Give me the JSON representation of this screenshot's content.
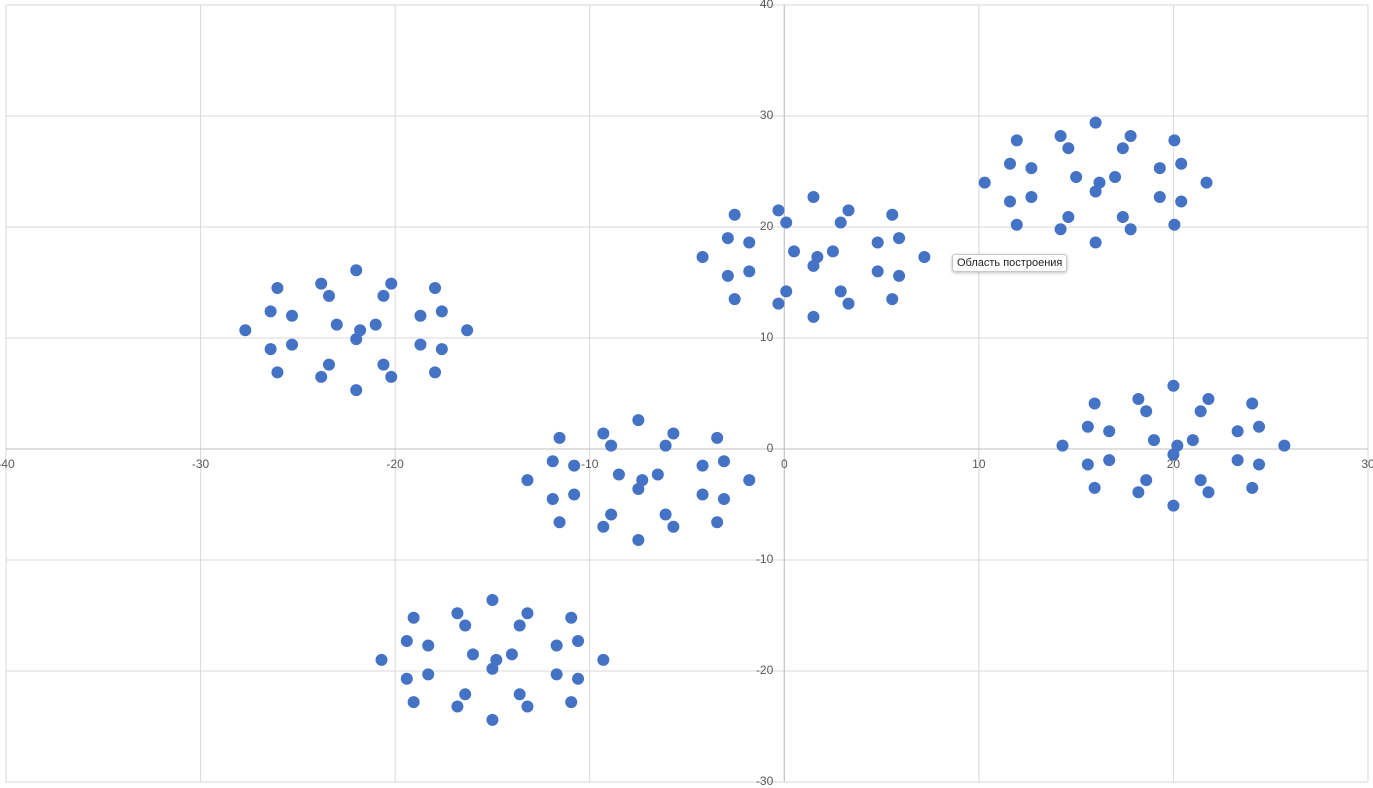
{
  "chart_data": {
    "type": "scatter",
    "annotation": "Область построения",
    "xlim": [
      -40,
      30
    ],
    "xticks": [
      -40,
      -30,
      -20,
      -10,
      0,
      10,
      20,
      30
    ],
    "ylim": [
      -30,
      40
    ],
    "yticks": [
      -30,
      -20,
      -10,
      0,
      10,
      20,
      30,
      40
    ],
    "grid": true,
    "series": [
      {
        "color": "#4472c4",
        "x": [
          -16.3,
          -17.95,
          -22,
          -26.05,
          -27.7,
          -26.05,
          -22,
          -17.95,
          -17.6,
          -20.2,
          -23.8,
          -26.4,
          -26.4,
          -23.8,
          -20.2,
          -17.6,
          -18.7,
          -20.6,
          -23.4,
          -25.3,
          -25.3,
          -23.4,
          -20.6,
          -18.7,
          -21,
          -23,
          -22,
          -21.8,
          7.2,
          5.55,
          1.5,
          -2.55,
          -4.2,
          -2.55,
          1.5,
          5.55,
          5.9,
          3.3,
          -0.3,
          -2.9,
          -2.9,
          -0.3,
          3.3,
          5.9,
          4.8,
          2.9,
          0.1,
          -1.8,
          -1.8,
          0.1,
          2.9,
          4.8,
          2.5,
          0.5,
          1.5,
          1.7,
          21.7,
          20.05,
          16,
          11.95,
          10.3,
          11.95,
          16,
          20.05,
          20.4,
          17.8,
          14.2,
          11.6,
          11.6,
          14.2,
          17.8,
          20.4,
          19.3,
          17.4,
          14.6,
          12.7,
          12.7,
          14.6,
          17.4,
          19.3,
          17,
          15,
          16,
          16.2,
          -1.8,
          -3.45,
          -7.5,
          -11.55,
          -13.2,
          -11.55,
          -7.5,
          -3.45,
          -3.1,
          -5.7,
          -9.3,
          -11.9,
          -11.9,
          -9.3,
          -5.7,
          -3.1,
          -4.2,
          -6.1,
          -8.9,
          -10.8,
          -10.8,
          -8.9,
          -6.1,
          -4.2,
          -6.5,
          -8.5,
          -7.5,
          -7.3,
          25.7,
          24.05,
          20,
          15.95,
          14.3,
          15.95,
          20,
          24.05,
          24.4,
          21.8,
          18.2,
          15.6,
          15.6,
          18.2,
          21.8,
          24.4,
          23.3,
          21.4,
          18.6,
          16.7,
          16.7,
          18.6,
          21.4,
          23.3,
          21,
          19,
          20,
          20.2,
          -9.3,
          -10.95,
          -15,
          -19.05,
          -20.7,
          -19.05,
          -15,
          -10.95,
          -10.6,
          -13.2,
          -16.8,
          -19.4,
          -19.4,
          -16.8,
          -13.2,
          -10.6,
          -11.7,
          -13.6,
          -16.4,
          -18.3,
          -18.3,
          -16.4,
          -13.6,
          -11.7,
          -14,
          -16,
          -15,
          -14.8
        ],
        "values": [
          10.7,
          14.5,
          16.1,
          14.5,
          10.7,
          6.9,
          5.3,
          6.9,
          12.4,
          14.9,
          14.9,
          12.4,
          9,
          6.5,
          6.5,
          9,
          12,
          13.8,
          13.8,
          12,
          9.4,
          7.6,
          7.6,
          9.4,
          11.2,
          11.2,
          9.9,
          10.7,
          17.3,
          21.1,
          22.7,
          21.1,
          17.3,
          13.5,
          11.9,
          13.5,
          19,
          21.5,
          21.5,
          19,
          15.6,
          13.1,
          13.1,
          15.6,
          18.6,
          20.4,
          20.4,
          18.6,
          16,
          14.2,
          14.2,
          16,
          17.8,
          17.8,
          16.5,
          17.3,
          24,
          27.8,
          29.4,
          27.8,
          24,
          20.2,
          18.6,
          20.2,
          25.7,
          28.2,
          28.2,
          25.7,
          22.3,
          19.8,
          19.8,
          22.3,
          25.3,
          27.1,
          27.1,
          25.3,
          22.7,
          20.9,
          20.9,
          22.7,
          24.5,
          24.5,
          23.2,
          24,
          -2.8,
          1,
          2.6,
          1,
          -2.8,
          -6.6,
          -8.2,
          -6.6,
          -1.1,
          1.4,
          1.4,
          -1.1,
          -4.5,
          -7,
          -7,
          -4.5,
          -1.5,
          0.3,
          0.3,
          -1.5,
          -4.1,
          -5.9,
          -5.9,
          -4.1,
          -2.3,
          -2.3,
          -3.6,
          -2.8,
          0.3,
          4.1,
          5.7,
          4.1,
          0.3,
          -3.5,
          -5.1,
          -3.5,
          2,
          4.5,
          4.5,
          2,
          -1.4,
          -3.9,
          -3.9,
          -1.4,
          1.6,
          3.4,
          3.4,
          1.6,
          -1,
          -2.8,
          -2.8,
          -1,
          0.8,
          0.8,
          -0.5,
          0.3,
          -19,
          -15.2,
          -13.6,
          -15.2,
          -19,
          -22.8,
          -24.4,
          -22.8,
          -17.3,
          -14.8,
          -14.8,
          -17.3,
          -20.7,
          -23.2,
          -23.2,
          -20.7,
          -17.7,
          -15.9,
          -15.9,
          -17.7,
          -20.3,
          -22.1,
          -22.1,
          -20.3,
          -18.5,
          -18.5,
          -19.8,
          -19
        ]
      }
    ]
  }
}
